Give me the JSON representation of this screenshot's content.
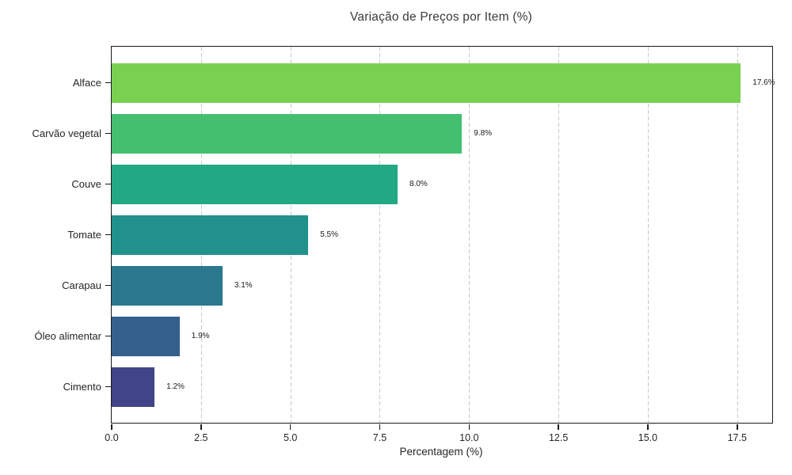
{
  "chart_data": {
    "type": "bar",
    "orientation": "horizontal",
    "title": "Variação de Preços por Item (%)",
    "xlabel": "Percentagem (%)",
    "ylabel": "",
    "categories": [
      "Alface",
      "Carvão vegetal",
      "Couve",
      "Tomate",
      "Carapau",
      "Óleo alimentar",
      "Cimento"
    ],
    "values": [
      17.6,
      9.8,
      8.0,
      5.5,
      3.1,
      1.9,
      1.2
    ],
    "value_labels": [
      "17.6%",
      "9.8%",
      "8.0%",
      "5.5%",
      "3.1%",
      "1.9%",
      "1.2%"
    ],
    "bar_colors": [
      "#7ad151",
      "#44bf70",
      "#22a884",
      "#21918c",
      "#2a788e",
      "#355f8d",
      "#414487"
    ],
    "xlim": [
      0,
      18.48
    ],
    "xticks": [
      "0.0",
      "2.5",
      "5.0",
      "7.5",
      "10.0",
      "12.5",
      "15.0",
      "17.5"
    ],
    "xtick_values": [
      0,
      2.5,
      5,
      7.5,
      10,
      12.5,
      15,
      17.5
    ],
    "grid": "vertical-dashed",
    "grid_color": "#c9c9c9",
    "frame_color": "#1a1a1a",
    "legend": "none"
  }
}
